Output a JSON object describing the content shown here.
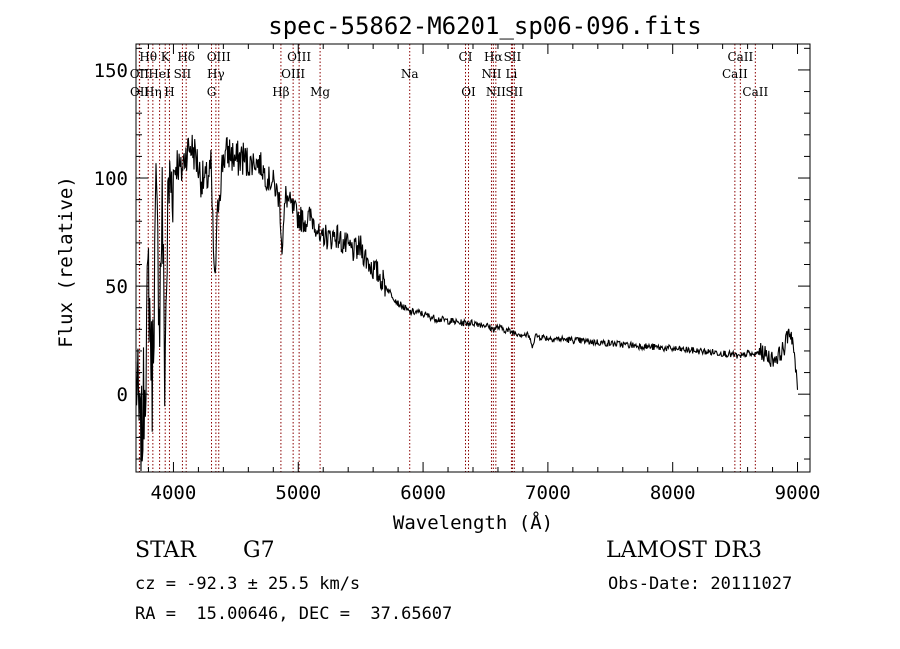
{
  "chart_data": {
    "type": "line",
    "title": "spec-55862-M6201_sp06-096.fits",
    "xlabel": "Wavelength (Å)",
    "ylabel": "Flux (relative)",
    "xlim": [
      3700,
      9100
    ],
    "ylim": [
      -36,
      162
    ],
    "x_ticks": [
      4000,
      5000,
      6000,
      7000,
      8000,
      9000
    ],
    "y_ticks": [
      0,
      50,
      100,
      150
    ],
    "grid": false,
    "line_color": "#000000",
    "marker_color": "#8b0000",
    "series": [
      {
        "name": "flux",
        "x": [
          3700,
          3740,
          3780,
          3800,
          3830,
          3860,
          3890,
          3910,
          3930,
          3960,
          3990,
          4030,
          4060,
          4100,
          4140,
          4180,
          4220,
          4260,
          4300,
          4330,
          4360,
          4400,
          4450,
          4500,
          4550,
          4600,
          4650,
          4700,
          4750,
          4800,
          4850,
          4870,
          4900,
          4950,
          5000,
          5050,
          5100,
          5150,
          5180,
          5200,
          5250,
          5300,
          5350,
          5400,
          5450,
          5500,
          5550,
          5600,
          5650,
          5700,
          5750,
          5800,
          5850,
          5890,
          5950,
          6000,
          6050,
          6100,
          6200,
          6300,
          6400,
          6500,
          6560,
          6600,
          6700,
          6850,
          6870,
          6900,
          7000,
          7200,
          7400,
          7600,
          7800,
          8000,
          8200,
          8400,
          8500,
          8540,
          8600,
          8650,
          8700,
          8800,
          8850,
          8900,
          8930,
          8960,
          9000
        ],
        "values": [
          10,
          -28,
          20,
          55,
          5,
          88,
          40,
          90,
          10,
          95,
          100,
          108,
          102,
          112,
          115,
          110,
          100,
          98,
          105,
          50,
          90,
          110,
          112,
          108,
          110,
          106,
          108,
          106,
          100,
          98,
          90,
          68,
          92,
          86,
          82,
          80,
          82,
          78,
          68,
          74,
          72,
          74,
          70,
          68,
          66,
          68,
          62,
          58,
          55,
          50,
          46,
          42,
          40,
          38,
          38,
          37,
          36,
          35,
          34,
          33,
          33,
          32,
          30,
          31,
          29,
          27,
          22,
          27,
          26,
          25,
          24,
          23,
          22,
          21,
          20,
          19,
          18,
          17,
          19,
          18,
          20,
          16,
          18,
          22,
          30,
          26,
          2
        ]
      }
    ],
    "line_markers": [
      {
        "label": "Hθ",
        "x": 3798,
        "row": 0
      },
      {
        "label": "K",
        "x": 3934,
        "row": 0
      },
      {
        "label": "Hδ",
        "x": 4102,
        "row": 0
      },
      {
        "label": "OIII",
        "x": 4363,
        "row": 0
      },
      {
        "label": "OIII",
        "x": 5007,
        "row": 0
      },
      {
        "label": "CI",
        "x": 6340,
        "row": 0
      },
      {
        "label": "Hα",
        "x": 6563,
        "row": 0
      },
      {
        "label": "SII",
        "x": 6716,
        "row": 0
      },
      {
        "label": "CaII",
        "x": 8542,
        "row": 0
      },
      {
        "label": "OII",
        "x": 3727,
        "row": 1
      },
      {
        "label": "HeI",
        "x": 3889,
        "row": 1
      },
      {
        "label": "SII",
        "x": 4072,
        "row": 1
      },
      {
        "label": "Hγ",
        "x": 4340,
        "row": 1
      },
      {
        "label": "OIII",
        "x": 4959,
        "row": 1
      },
      {
        "label": "Na",
        "x": 5893,
        "row": 1
      },
      {
        "label": "NII",
        "x": 6548,
        "row": 1
      },
      {
        "label": "Li",
        "x": 6708,
        "row": 1
      },
      {
        "label": "CaII",
        "x": 8498,
        "row": 1
      },
      {
        "label": "OII",
        "x": 3729,
        "row": 2
      },
      {
        "label": "Hη",
        "x": 3835,
        "row": 2
      },
      {
        "label": "H",
        "x": 3968,
        "row": 2
      },
      {
        "label": "G",
        "x": 4305,
        "row": 2
      },
      {
        "label": "Hβ",
        "x": 4861,
        "row": 2
      },
      {
        "label": "Mg",
        "x": 5175,
        "row": 2
      },
      {
        "label": "OI",
        "x": 6364,
        "row": 2
      },
      {
        "label": "NII",
        "x": 6583,
        "row": 2
      },
      {
        "label": "SII",
        "x": 6731,
        "row": 2
      },
      {
        "label": "CaII",
        "x": 8662,
        "row": 2
      }
    ]
  },
  "info": {
    "object_class": "STAR",
    "subclass": "G7",
    "survey": "LAMOST DR3",
    "redshift": "cz = -92.3 ± 25.5 km/s",
    "obs_date": "Obs-Date: 20111027",
    "coords": "RA =  15.00646, DEC =  37.65607"
  }
}
